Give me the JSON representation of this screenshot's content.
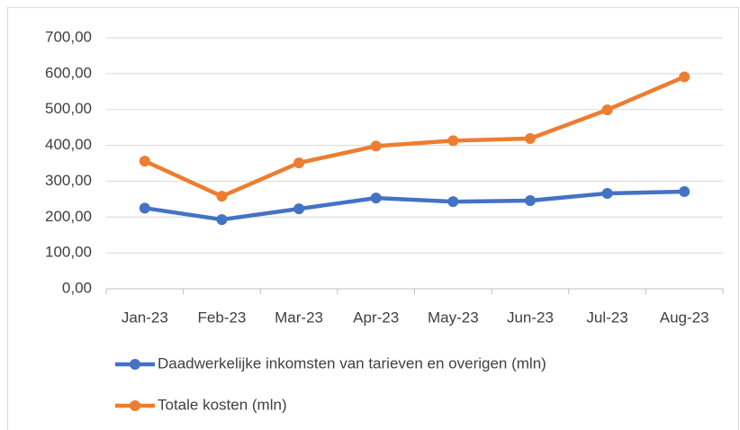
{
  "chart_data": {
    "type": "line",
    "categories": [
      "Jan-23",
      "Feb-23",
      "Mar-23",
      "Apr-23",
      "May-23",
      "Jun-23",
      "Jul-23",
      "Aug-23"
    ],
    "series": [
      {
        "name": "Daadwerkelijke inkomsten van tarieven en overigen (mln)",
        "color": "#4472c4",
        "values": [
          225,
          193,
          223,
          253,
          243,
          246,
          266,
          271
        ]
      },
      {
        "name": "Totale kosten (mln)",
        "color": "#ed7d31",
        "values": [
          356,
          258,
          351,
          398,
          413,
          419,
          499,
          591
        ]
      }
    ],
    "ylim": [
      0,
      700
    ],
    "yticks": [
      {
        "value": 0,
        "label": "0,00"
      },
      {
        "value": 100,
        "label": "100,00"
      },
      {
        "value": 200,
        "label": "200,00"
      },
      {
        "value": 300,
        "label": "300,00"
      },
      {
        "value": 400,
        "label": "400,00"
      },
      {
        "value": 500,
        "label": "500,00"
      },
      {
        "value": 600,
        "label": "600,00"
      },
      {
        "value": 700,
        "label": "700,00"
      }
    ],
    "grid": true,
    "legend": "bottom"
  }
}
